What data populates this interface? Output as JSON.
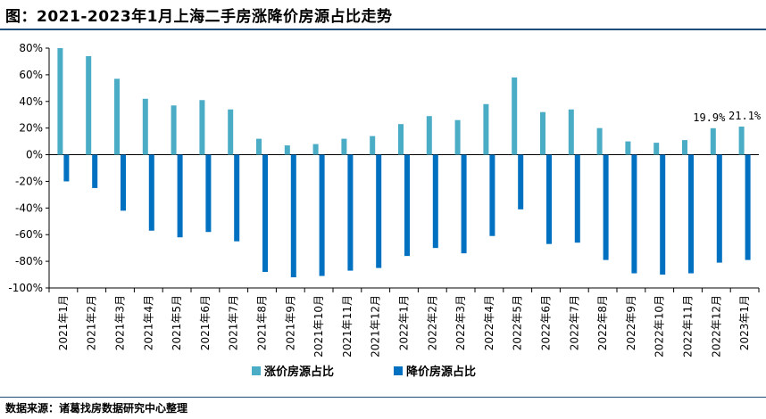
{
  "title": "图：2021-2023年1月上海二手房涨降价房源占比走势",
  "source": "数据来源：诸葛找房数据研究中心整理",
  "colors": {
    "rise": "#4bacc6",
    "fall": "#0070c0",
    "axis": "#000000"
  },
  "chart_data": {
    "type": "bar",
    "title": "2021-2023年1月上海二手房涨降价房源占比走势",
    "categories": [
      "2021年1月",
      "2021年2月",
      "2021年3月",
      "2021年4月",
      "2021年5月",
      "2021年6月",
      "2021年7月",
      "2021年8月",
      "2021年9月",
      "2021年10月",
      "2021年11月",
      "2021年12月",
      "2022年1月",
      "2022年2月",
      "2022年3月",
      "2022年4月",
      "2022年5月",
      "2022年6月",
      "2022年7月",
      "2022年8月",
      "2022年9月",
      "2022年10月",
      "2022年11月",
      "2022年12月",
      "2023年1月"
    ],
    "series": [
      {
        "name": "涨价房源占比",
        "values": [
          80,
          74,
          57,
          42,
          37,
          41,
          34,
          12,
          7,
          8,
          12,
          14,
          23,
          29,
          26,
          38,
          58,
          32,
          34,
          20,
          10,
          9,
          11,
          19.9,
          21.1
        ]
      },
      {
        "name": "降价房源占比",
        "values": [
          -20,
          -25,
          -42,
          -57,
          -62,
          -58,
          -65,
          -88,
          -92,
          -91,
          -87,
          -85,
          -76,
          -70,
          -74,
          -61,
          -41,
          -67,
          -66,
          -79,
          -89,
          -90,
          -89,
          -81,
          -79
        ]
      }
    ],
    "yticks": [
      "80%",
      "60%",
      "40%",
      "20%",
      "0%",
      "-20%",
      "-40%",
      "-60%",
      "-80%",
      "-100%"
    ],
    "ylim": [
      -100,
      80
    ],
    "annotations": [
      {
        "series": 0,
        "index": 23,
        "text": "19.9%"
      },
      {
        "series": 0,
        "index": 24,
        "text": "21.1%"
      }
    ],
    "legend_position": "bottom"
  }
}
